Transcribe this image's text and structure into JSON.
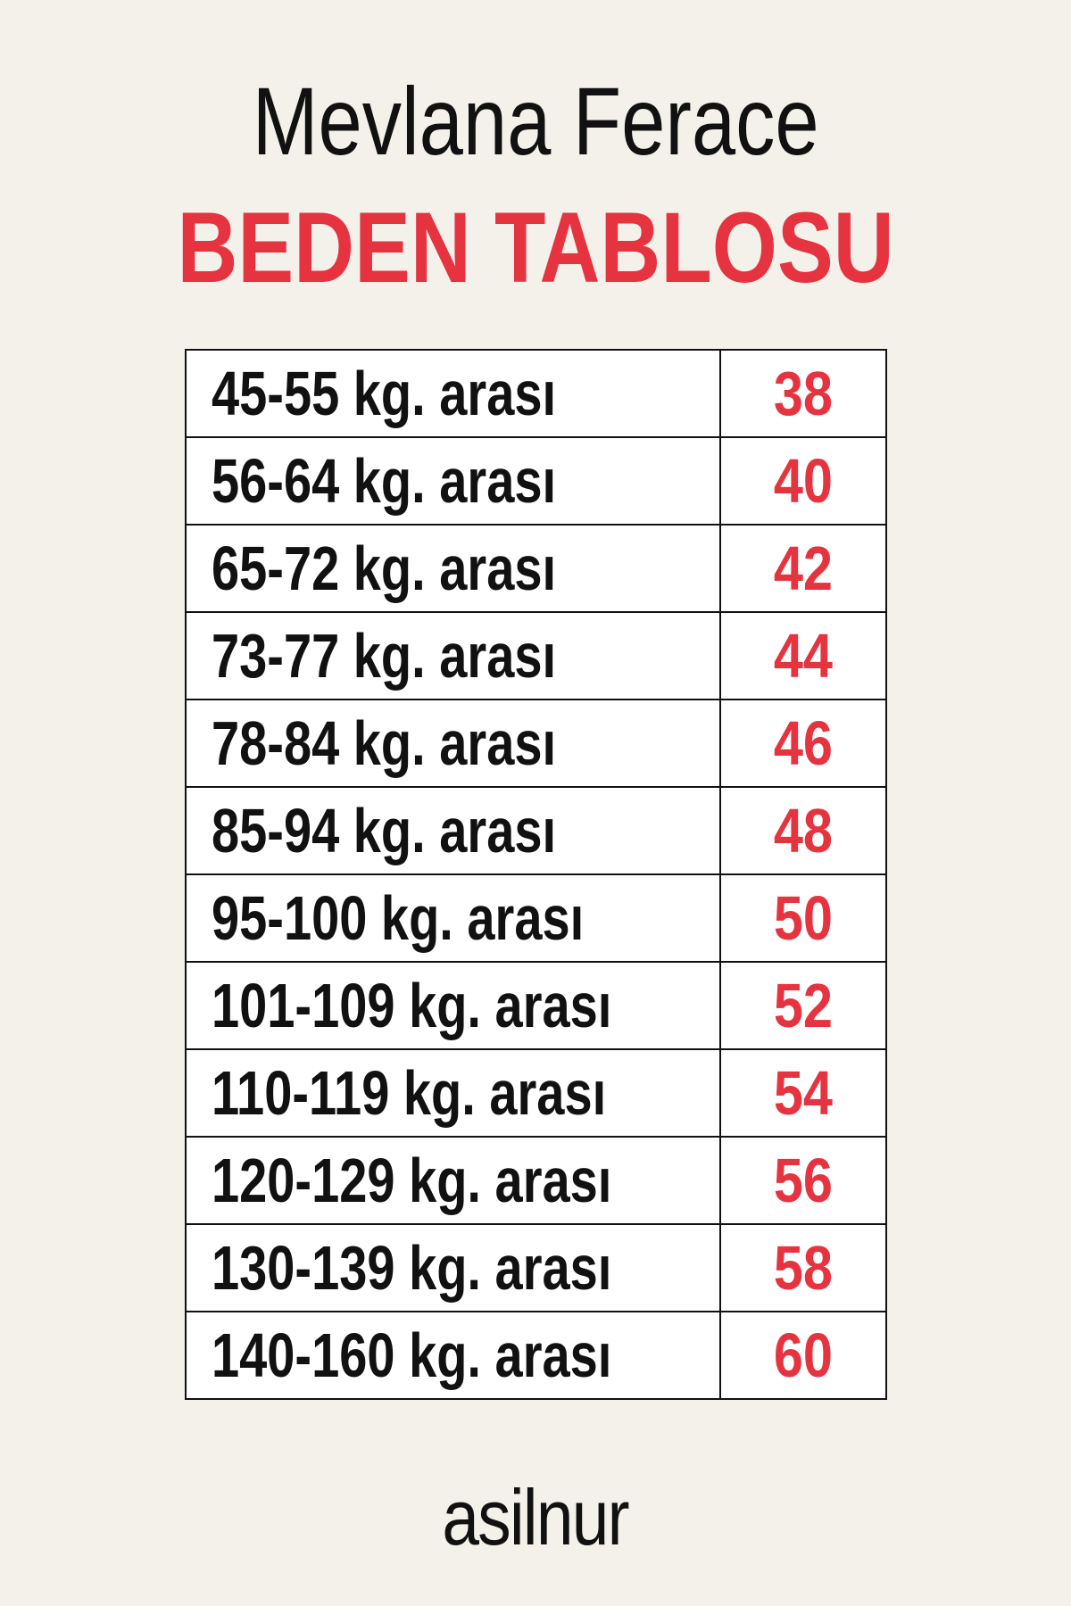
{
  "title": "Mevlana Ferace",
  "subtitle": "BEDEN TABLOSU",
  "accent_color": "#e63340",
  "rows": [
    {
      "weight": "45-55 kg. arası",
      "size": "38"
    },
    {
      "weight": "56-64 kg. arası",
      "size": "40"
    },
    {
      "weight": "65-72 kg. arası",
      "size": "42"
    },
    {
      "weight": "73-77 kg. arası",
      "size": "44"
    },
    {
      "weight": "78-84 kg. arası",
      "size": "46"
    },
    {
      "weight": "85-94 kg. arası",
      "size": "48"
    },
    {
      "weight": "95-100 kg. arası",
      "size": "50"
    },
    {
      "weight": "101-109 kg. arası",
      "size": "52"
    },
    {
      "weight": "110-119 kg. arası",
      "size": "54"
    },
    {
      "weight": "120-129 kg. arası",
      "size": "56"
    },
    {
      "weight": "130-139 kg. arası",
      "size": "58"
    },
    {
      "weight": "140-160 kg. arası",
      "size": "60"
    }
  ],
  "logo": "asilnur"
}
